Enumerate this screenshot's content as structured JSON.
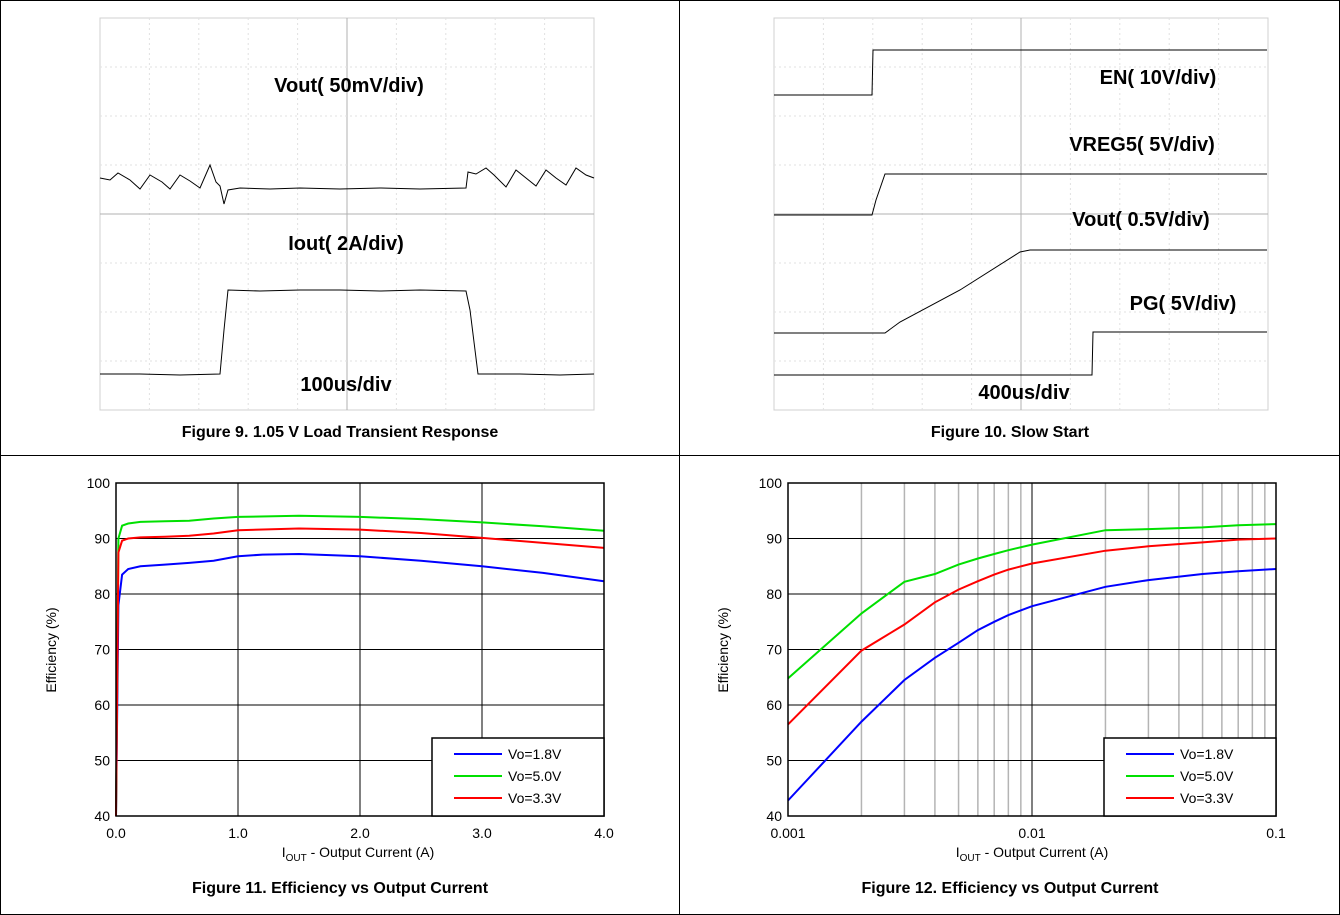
{
  "figures": {
    "fig9": {
      "caption": "Figure 9. 1.05 V Load Transient Response",
      "labels": {
        "vout": "Vout( 50mV/div)",
        "iout": "Iout( 2A/div)",
        "time": "100us/div"
      }
    },
    "fig10": {
      "caption": "Figure 10. Slow Start",
      "labels": {
        "en": "EN( 10V/div)",
        "vreg5": "VREG5( 5V/div)",
        "vout": "Vout( 0.5V/div)",
        "pg": "PG( 5V/div)",
        "time": "400us/div"
      }
    },
    "fig11": {
      "caption": "Figure 11. Efficiency vs Output Current"
    },
    "fig12": {
      "caption": "Figure 12. Efficiency vs Output Current"
    }
  },
  "chart_data": [
    {
      "id": "fig11",
      "type": "line",
      "ylabel": "Efficiency (%)",
      "xlabel_main": "I",
      "xlabel_sub": "OUT",
      "xlabel_rest": " - Output Current (A)",
      "xlim": [
        0,
        4
      ],
      "ylim": [
        40,
        100
      ],
      "xscale": "linear",
      "xticks": [
        0,
        1,
        2,
        3,
        4
      ],
      "xtick_labels": [
        "0.0",
        "1.0",
        "2.0",
        "3.0",
        "4.0"
      ],
      "yticks": [
        40,
        50,
        60,
        70,
        80,
        90,
        100
      ],
      "ytick_labels": [
        "40",
        "50",
        "60",
        "70",
        "80",
        "90",
        "100"
      ],
      "legend_position": "bottom-right",
      "series": [
        {
          "name": "Vo=1.8V",
          "color": "#0000ff",
          "x": [
            0.0,
            0.02,
            0.05,
            0.1,
            0.2,
            0.4,
            0.6,
            0.8,
            1.0,
            1.2,
            1.5,
            2.0,
            2.5,
            3.0,
            3.5,
            4.0
          ],
          "y": [
            40,
            78,
            83.5,
            84.5,
            85,
            85.3,
            85.6,
            86,
            86.8,
            87.1,
            87.2,
            86.8,
            86,
            85,
            83.8,
            82.3
          ]
        },
        {
          "name": "Vo=5.0V",
          "color": "#00e000",
          "x": [
            0.0,
            0.02,
            0.05,
            0.1,
            0.2,
            0.4,
            0.6,
            0.8,
            1.0,
            1.5,
            2.0,
            2.5,
            3.0,
            3.5,
            4.0
          ],
          "y": [
            40,
            90,
            92.3,
            92.7,
            93,
            93.1,
            93.2,
            93.6,
            93.9,
            94.1,
            93.9,
            93.5,
            92.9,
            92.2,
            91.4
          ]
        },
        {
          "name": "Vo=3.3V",
          "color": "#ff0000",
          "x": [
            0.0,
            0.02,
            0.05,
            0.1,
            0.2,
            0.4,
            0.6,
            0.8,
            1.0,
            1.5,
            2.0,
            2.5,
            3.0,
            3.5,
            4.0
          ],
          "y": [
            40,
            87.5,
            89.6,
            90,
            90.2,
            90.3,
            90.5,
            90.9,
            91.5,
            91.8,
            91.6,
            91,
            90.1,
            89.2,
            88.3
          ]
        }
      ]
    },
    {
      "id": "fig12",
      "type": "line",
      "ylabel": "Efficiency (%)",
      "xlabel_main": "I",
      "xlabel_sub": "OUT",
      "xlabel_rest": " - Output Current (A)",
      "xlim": [
        0.001,
        0.1
      ],
      "ylim": [
        40,
        100
      ],
      "xscale": "log",
      "xticks": [
        0.001,
        0.01,
        0.1
      ],
      "xtick_labels": [
        "0.001",
        "0.01",
        "0.1"
      ],
      "yticks": [
        40,
        50,
        60,
        70,
        80,
        90,
        100
      ],
      "ytick_labels": [
        "40",
        "50",
        "60",
        "70",
        "80",
        "90",
        "100"
      ],
      "legend_position": "bottom-right",
      "series": [
        {
          "name": "Vo=1.8V",
          "color": "#0000ff",
          "x": [
            0.001,
            0.002,
            0.003,
            0.004,
            0.005,
            0.006,
            0.007,
            0.008,
            0.01,
            0.02,
            0.03,
            0.05,
            0.07,
            0.1
          ],
          "y": [
            42.8,
            57,
            64.5,
            68.5,
            71.2,
            73.5,
            75,
            76.2,
            77.8,
            81.3,
            82.5,
            83.6,
            84.1,
            84.5
          ]
        },
        {
          "name": "Vo=5.0V",
          "color": "#00e000",
          "x": [
            0.001,
            0.002,
            0.003,
            0.004,
            0.005,
            0.006,
            0.007,
            0.008,
            0.01,
            0.02,
            0.03,
            0.05,
            0.07,
            0.1
          ],
          "y": [
            64.8,
            76.5,
            82.2,
            83.6,
            85.3,
            86.4,
            87.2,
            87.9,
            88.9,
            91.5,
            91.7,
            92,
            92.4,
            92.6
          ]
        },
        {
          "name": "Vo=3.3V",
          "color": "#ff0000",
          "x": [
            0.001,
            0.002,
            0.003,
            0.004,
            0.005,
            0.006,
            0.007,
            0.008,
            0.01,
            0.02,
            0.03,
            0.05,
            0.07,
            0.1
          ],
          "y": [
            56.5,
            69.8,
            74.5,
            78.5,
            80.8,
            82.3,
            83.5,
            84.4,
            85.5,
            87.8,
            88.6,
            89.3,
            89.8,
            90
          ]
        }
      ]
    }
  ]
}
